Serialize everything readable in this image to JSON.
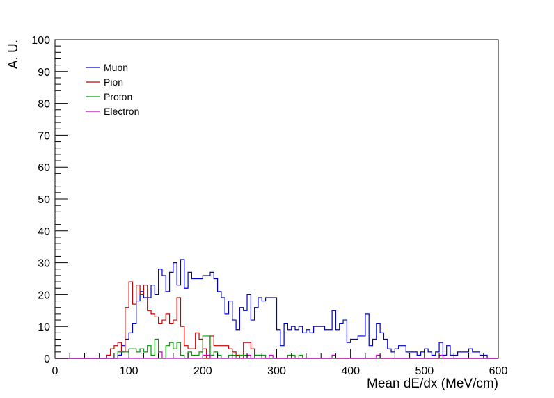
{
  "chart_data": {
    "type": "histogram",
    "title": "",
    "xlabel": "Mean dE/dx (MeV/cm)",
    "ylabel": "A. U.",
    "xlim": [
      0,
      600
    ],
    "ylim": [
      0,
      100
    ],
    "bin_width": 5,
    "x_ticks": [
      "0",
      "100",
      "200",
      "300",
      "400",
      "500",
      "600"
    ],
    "y_ticks": [
      "0",
      "10",
      "20",
      "30",
      "40",
      "50",
      "60",
      "70",
      "80",
      "90",
      "100"
    ],
    "grid": false,
    "legend_position": "top-left",
    "series": [
      {
        "name": "Muon",
        "color": "#0000cc",
        "bins": [
          [
            85,
            1
          ],
          [
            90,
            4
          ],
          [
            95,
            6
          ],
          [
            100,
            8
          ],
          [
            105,
            11
          ],
          [
            110,
            18
          ],
          [
            115,
            21
          ],
          [
            120,
            19
          ],
          [
            125,
            19
          ],
          [
            130,
            23
          ],
          [
            135,
            20
          ],
          [
            140,
            28
          ],
          [
            145,
            26
          ],
          [
            150,
            21
          ],
          [
            155,
            27
          ],
          [
            160,
            30
          ],
          [
            165,
            23
          ],
          [
            170,
            31
          ],
          [
            175,
            22
          ],
          [
            180,
            27
          ],
          [
            185,
            25
          ],
          [
            190,
            25
          ],
          [
            195,
            25
          ],
          [
            200,
            26
          ],
          [
            205,
            26
          ],
          [
            210,
            27
          ],
          [
            215,
            25
          ],
          [
            220,
            21
          ],
          [
            225,
            19
          ],
          [
            230,
            14
          ],
          [
            235,
            18
          ],
          [
            240,
            12
          ],
          [
            245,
            9
          ],
          [
            250,
            16
          ],
          [
            255,
            15
          ],
          [
            260,
            20
          ],
          [
            265,
            12
          ],
          [
            270,
            16
          ],
          [
            275,
            19
          ],
          [
            280,
            18
          ],
          [
            285,
            19
          ],
          [
            290,
            19
          ],
          [
            295,
            19
          ],
          [
            300,
            9
          ],
          [
            305,
            4
          ],
          [
            310,
            11
          ],
          [
            315,
            9
          ],
          [
            320,
            10
          ],
          [
            325,
            9
          ],
          [
            330,
            10
          ],
          [
            335,
            8
          ],
          [
            340,
            9
          ],
          [
            345,
            8
          ],
          [
            350,
            10
          ],
          [
            355,
            10
          ],
          [
            360,
            10
          ],
          [
            365,
            9
          ],
          [
            370,
            9
          ],
          [
            375,
            15
          ],
          [
            380,
            9
          ],
          [
            385,
            11
          ],
          [
            390,
            12
          ],
          [
            395,
            5
          ],
          [
            400,
            6
          ],
          [
            405,
            6
          ],
          [
            410,
            7
          ],
          [
            415,
            7
          ],
          [
            420,
            14
          ],
          [
            425,
            4
          ],
          [
            430,
            6
          ],
          [
            435,
            11
          ],
          [
            440,
            8
          ],
          [
            445,
            6
          ],
          [
            450,
            3
          ],
          [
            455,
            2
          ],
          [
            460,
            3
          ],
          [
            465,
            4
          ],
          [
            470,
            4
          ],
          [
            475,
            2
          ],
          [
            480,
            2
          ],
          [
            485,
            2
          ],
          [
            490,
            1
          ],
          [
            495,
            2
          ],
          [
            500,
            3
          ],
          [
            505,
            2
          ],
          [
            510,
            1
          ],
          [
            515,
            2
          ],
          [
            520,
            5
          ],
          [
            525,
            1
          ],
          [
            530,
            4
          ],
          [
            535,
            1
          ],
          [
            540,
            1
          ],
          [
            545,
            2
          ],
          [
            550,
            2
          ],
          [
            555,
            2
          ],
          [
            560,
            3
          ],
          [
            565,
            2
          ],
          [
            570,
            2
          ],
          [
            575,
            1
          ],
          [
            580,
            1
          ],
          [
            585,
            0
          ]
        ]
      },
      {
        "name": "Pion",
        "color": "#cc0000",
        "bins": [
          [
            70,
            1
          ],
          [
            75,
            3
          ],
          [
            80,
            4
          ],
          [
            85,
            5
          ],
          [
            90,
            2
          ],
          [
            95,
            16
          ],
          [
            100,
            24
          ],
          [
            105,
            17
          ],
          [
            110,
            23
          ],
          [
            115,
            20
          ],
          [
            120,
            23
          ],
          [
            125,
            15
          ],
          [
            130,
            14
          ],
          [
            135,
            13
          ],
          [
            140,
            11
          ],
          [
            145,
            12
          ],
          [
            150,
            14
          ],
          [
            155,
            11
          ],
          [
            160,
            12
          ],
          [
            165,
            19
          ],
          [
            170,
            10
          ],
          [
            175,
            4
          ],
          [
            180,
            3
          ],
          [
            185,
            3
          ],
          [
            190,
            8
          ],
          [
            195,
            6
          ],
          [
            200,
            3
          ],
          [
            205,
            0
          ],
          [
            210,
            7
          ],
          [
            215,
            4
          ],
          [
            220,
            4
          ],
          [
            225,
            4
          ],
          [
            230,
            4
          ],
          [
            235,
            3
          ],
          [
            240,
            2
          ],
          [
            245,
            1
          ],
          [
            250,
            0
          ],
          [
            255,
            5
          ],
          [
            260,
            5
          ],
          [
            265,
            3
          ],
          [
            270,
            1
          ],
          [
            275,
            1
          ],
          [
            280,
            0
          ]
        ]
      },
      {
        "name": "Proton",
        "color": "#009900",
        "bins": [
          [
            80,
            0
          ],
          [
            85,
            2
          ],
          [
            90,
            2
          ],
          [
            95,
            2
          ],
          [
            100,
            3
          ],
          [
            105,
            3
          ],
          [
            110,
            2
          ],
          [
            115,
            3
          ],
          [
            120,
            2
          ],
          [
            125,
            4
          ],
          [
            130,
            1
          ],
          [
            135,
            6
          ],
          [
            140,
            0
          ],
          [
            145,
            0
          ],
          [
            150,
            4
          ],
          [
            155,
            5
          ],
          [
            160,
            3
          ],
          [
            165,
            5
          ],
          [
            170,
            1
          ],
          [
            175,
            0
          ],
          [
            180,
            2
          ],
          [
            185,
            1
          ],
          [
            190,
            1
          ],
          [
            195,
            2
          ],
          [
            200,
            7
          ],
          [
            205,
            7
          ],
          [
            210,
            1
          ],
          [
            215,
            2
          ],
          [
            220,
            1
          ],
          [
            225,
            0
          ],
          [
            230,
            0
          ],
          [
            235,
            1
          ],
          [
            240,
            1
          ],
          [
            245,
            0
          ],
          [
            250,
            1
          ],
          [
            255,
            1
          ],
          [
            260,
            1
          ],
          [
            265,
            0
          ],
          [
            270,
            1
          ],
          [
            275,
            1
          ],
          [
            280,
            1
          ],
          [
            285,
            0
          ],
          [
            290,
            0
          ],
          [
            295,
            0
          ],
          [
            300,
            0
          ],
          [
            305,
            0
          ],
          [
            310,
            0
          ],
          [
            315,
            1
          ],
          [
            320,
            1
          ],
          [
            325,
            0
          ],
          [
            330,
            1
          ],
          [
            335,
            0
          ]
        ]
      },
      {
        "name": "Electron",
        "color": "#cc00cc",
        "bins": [
          [
            140,
            2
          ],
          [
            145,
            0
          ],
          [
            150,
            0
          ],
          [
            155,
            0
          ],
          [
            160,
            0
          ],
          [
            165,
            0
          ],
          [
            170,
            0
          ],
          [
            175,
            0
          ],
          [
            180,
            0
          ],
          [
            185,
            0
          ],
          [
            190,
            0
          ],
          [
            195,
            0
          ],
          [
            200,
            1
          ],
          [
            205,
            1
          ],
          [
            210,
            0
          ],
          [
            215,
            0
          ],
          [
            220,
            0
          ],
          [
            225,
            0
          ],
          [
            230,
            0
          ],
          [
            235,
            0
          ],
          [
            240,
            0
          ],
          [
            245,
            0
          ],
          [
            250,
            0
          ],
          [
            255,
            0
          ],
          [
            260,
            1
          ],
          [
            265,
            0
          ],
          [
            270,
            0
          ],
          [
            275,
            0
          ],
          [
            280,
            0
          ],
          [
            285,
            0
          ],
          [
            290,
            1
          ],
          [
            295,
            0
          ],
          [
            300,
            0
          ],
          [
            305,
            0
          ],
          [
            310,
            0
          ],
          [
            315,
            0
          ],
          [
            320,
            0
          ],
          [
            325,
            0
          ],
          [
            330,
            0
          ],
          [
            335,
            0
          ],
          [
            340,
            0
          ],
          [
            345,
            0
          ],
          [
            350,
            0
          ],
          [
            355,
            0
          ],
          [
            360,
            0
          ],
          [
            365,
            0
          ],
          [
            370,
            0
          ],
          [
            375,
            1
          ],
          [
            380,
            0
          ],
          [
            385,
            0
          ],
          [
            390,
            0
          ],
          [
            395,
            0
          ],
          [
            400,
            0
          ],
          [
            405,
            0
          ],
          [
            410,
            0
          ],
          [
            415,
            0
          ],
          [
            420,
            0
          ],
          [
            425,
            0
          ],
          [
            430,
            0
          ],
          [
            435,
            1
          ],
          [
            440,
            0
          ],
          [
            445,
            0
          ],
          [
            450,
            0
          ],
          [
            455,
            0
          ],
          [
            460,
            0
          ],
          [
            465,
            0
          ],
          [
            470,
            0
          ],
          [
            475,
            0
          ],
          [
            480,
            0
          ],
          [
            485,
            0
          ],
          [
            490,
            0
          ],
          [
            495,
            0
          ],
          [
            500,
            0
          ],
          [
            505,
            0
          ],
          [
            510,
            0
          ],
          [
            515,
            0
          ],
          [
            520,
            1
          ],
          [
            525,
            0
          ]
        ]
      }
    ]
  }
}
